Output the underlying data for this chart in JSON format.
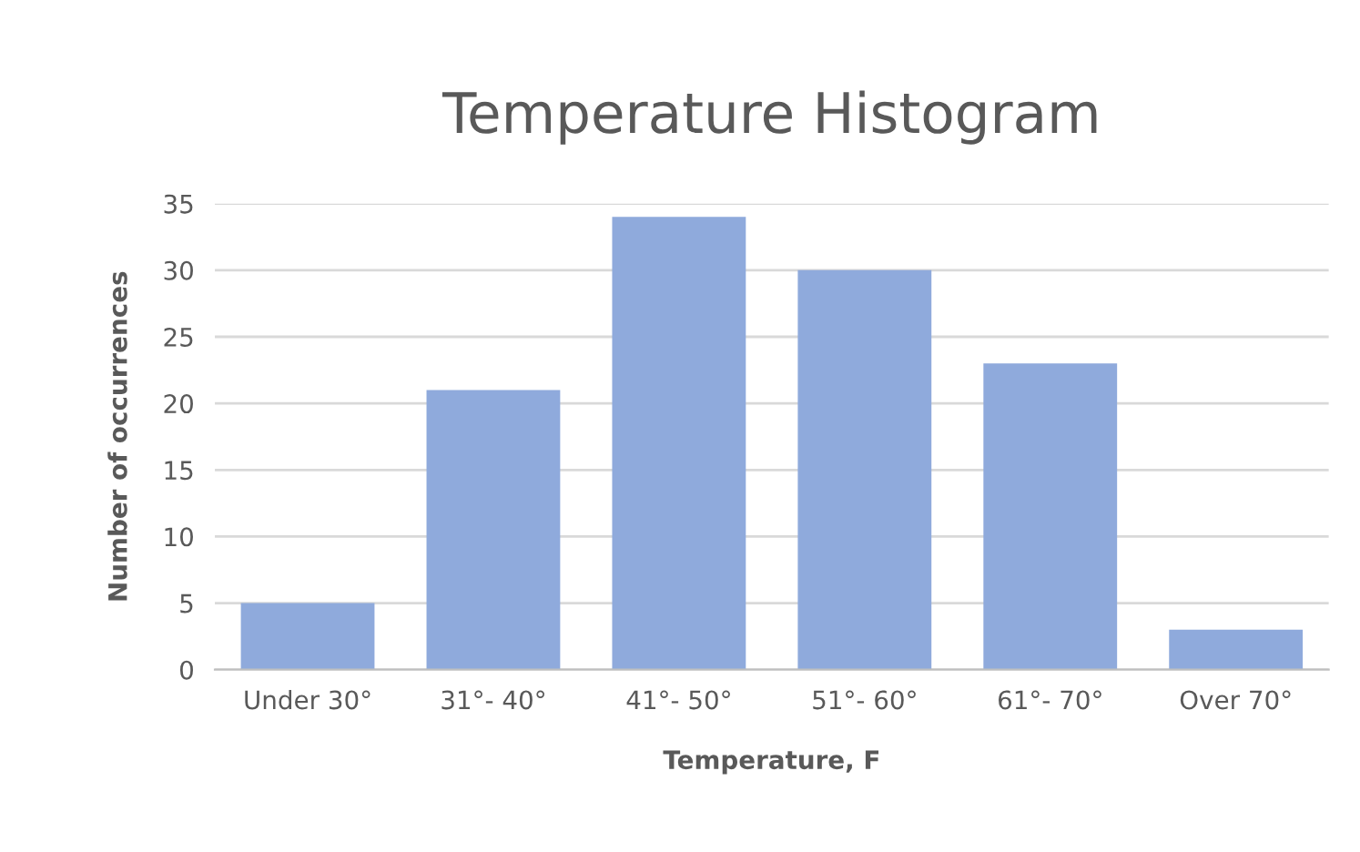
{
  "chart_data": {
    "type": "bar",
    "title": "Temperature Histogram",
    "xlabel": "Temperature, F",
    "ylabel": "Number of occurrences",
    "categories": [
      "Under 30°",
      "31°- 40°",
      "41°- 50°",
      "51°- 60°",
      "61°- 70°",
      "Over 70°"
    ],
    "values": [
      5,
      21,
      34,
      30,
      23,
      3
    ],
    "color": "#8faadc",
    "ylim": [
      0,
      35
    ],
    "yticks": [
      0,
      5,
      10,
      15,
      20,
      25,
      30,
      35
    ],
    "grid": "y",
    "legend": false
  }
}
